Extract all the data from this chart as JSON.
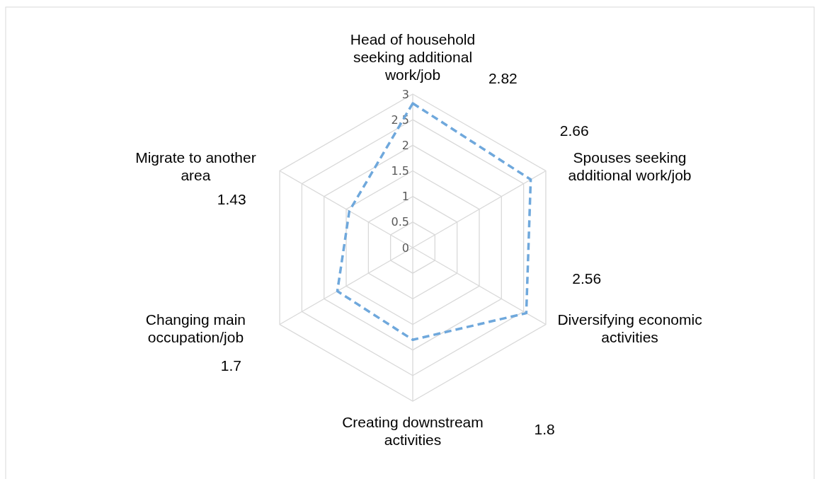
{
  "chart_data": {
    "type": "radar",
    "categories": [
      "Head of household seeking additional work/job",
      "Spouses seeking additional work/job",
      "Diversifying economic activities",
      "Creating downstream activities",
      "Changing main occupation/job",
      "Migrate to another area"
    ],
    "series": [
      {
        "color": "#6fa8dc",
        "values": [
          2.82,
          2.66,
          2.56,
          1.8,
          1.7,
          1.43
        ]
      }
    ],
    "ylim": [
      0,
      3
    ],
    "yticks": [
      0,
      0.5,
      1,
      1.5,
      2,
      2.5,
      3
    ],
    "grid": true,
    "line_style": "dashed",
    "marker": "none",
    "annotations": [
      "2.82",
      "2.66",
      "2.56",
      "1.8",
      "1.7",
      "1.43"
    ]
  }
}
